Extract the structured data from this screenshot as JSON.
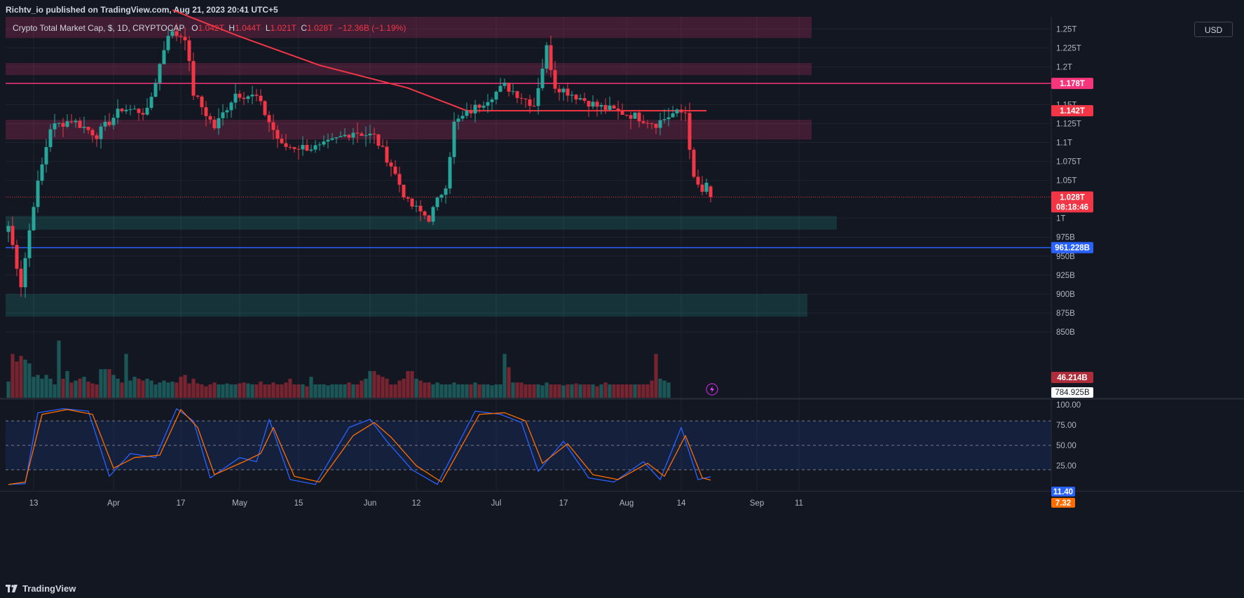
{
  "header": {
    "published": "Richtv_io published on TradingView.com, Aug 21, 2023 20:41 UTC+5"
  },
  "footer": {
    "brand": "TradingView"
  },
  "legend": {
    "symbol": "Crypto Total Market Cap, $, 1D, CRYPTOCAP",
    "o_label": "O",
    "o": "1.042T",
    "h_label": "H",
    "h": "1.044T",
    "l_label": "L",
    "l": "1.021T",
    "c_label": "C",
    "c": "1.028T",
    "change": "−12.36B (−1.19%)"
  },
  "currency": "USD",
  "chart_data": [
    {
      "type": "candlestick",
      "title": "Crypto Total Market Cap, $, 1D, CRYPTOCAP",
      "unit": "USD",
      "ylim": [
        763000000000,
        1266000000000
      ],
      "y_ticks": [
        {
          "value": 1250000000000,
          "label": "1.25T"
        },
        {
          "value": 1225000000000,
          "label": "1.225T"
        },
        {
          "value": 1200000000000,
          "label": "1.2T"
        },
        {
          "value": 1150000000000,
          "label": "1.15T"
        },
        {
          "value": 1125000000000,
          "label": "1.125T"
        },
        {
          "value": 1100000000000,
          "label": "1.1T"
        },
        {
          "value": 1075000000000,
          "label": "1.075T"
        },
        {
          "value": 1050000000000,
          "label": "1.05T"
        },
        {
          "value": 1000000000000,
          "label": "1T"
        },
        {
          "value": 975000000000,
          "label": "975B"
        },
        {
          "value": 950000000000,
          "label": "950B"
        },
        {
          "value": 925000000000,
          "label": "925B"
        },
        {
          "value": 900000000000,
          "label": "900B"
        },
        {
          "value": 875000000000,
          "label": "875B"
        },
        {
          "value": 850000000000,
          "label": "850B"
        }
      ],
      "x_ticks": [
        "13",
        "Apr",
        "17",
        "May",
        "15",
        "Jun",
        "12",
        "Jul",
        "17",
        "Aug",
        "14",
        "Sep",
        "11"
      ],
      "start_date": "2023-03-07",
      "anchors": [
        {
          "date": "2023-03-07",
          "close": 990000000000
        },
        {
          "date": "2023-03-10",
          "close": 912000000000
        },
        {
          "date": "2023-03-13",
          "close": 1020000000000
        },
        {
          "date": "2023-03-17",
          "close": 1120000000000
        },
        {
          "date": "2023-03-22",
          "close": 1130000000000
        },
        {
          "date": "2023-03-28",
          "close": 1110000000000
        },
        {
          "date": "2023-04-03",
          "close": 1145000000000
        },
        {
          "date": "2023-04-09",
          "close": 1140000000000
        },
        {
          "date": "2023-04-14",
          "close": 1245000000000
        },
        {
          "date": "2023-04-18",
          "close": 1240000000000
        },
        {
          "date": "2023-04-20",
          "close": 1165000000000
        },
        {
          "date": "2023-04-25",
          "close": 1120000000000
        },
        {
          "date": "2023-04-30",
          "close": 1165000000000
        },
        {
          "date": "2023-05-05",
          "close": 1160000000000
        },
        {
          "date": "2023-05-11",
          "close": 1095000000000
        },
        {
          "date": "2023-05-20",
          "close": 1093000000000
        },
        {
          "date": "2023-05-28",
          "close": 1115000000000
        },
        {
          "date": "2023-06-02",
          "close": 1108000000000
        },
        {
          "date": "2023-06-06",
          "close": 1070000000000
        },
        {
          "date": "2023-06-10",
          "close": 1020000000000
        },
        {
          "date": "2023-06-15",
          "close": 1000000000000
        },
        {
          "date": "2023-06-19",
          "close": 1045000000000
        },
        {
          "date": "2023-06-21",
          "close": 1125000000000
        },
        {
          "date": "2023-06-27",
          "close": 1150000000000
        },
        {
          "date": "2023-07-03",
          "close": 1175000000000
        },
        {
          "date": "2023-07-10",
          "close": 1150000000000
        },
        {
          "date": "2023-07-13",
          "close": 1225000000000
        },
        {
          "date": "2023-07-15",
          "close": 1175000000000
        },
        {
          "date": "2023-07-25",
          "close": 1148000000000
        },
        {
          "date": "2023-08-03",
          "close": 1135000000000
        },
        {
          "date": "2023-08-08",
          "close": 1125000000000
        },
        {
          "date": "2023-08-12",
          "close": 1138000000000
        },
        {
          "date": "2023-08-15",
          "close": 1140000000000
        },
        {
          "date": "2023-08-17",
          "close": 1050000000000
        },
        {
          "date": "2023-08-19",
          "close": 1035000000000
        },
        {
          "date": "2023-08-20",
          "close": 1042000000000
        },
        {
          "date": "2023-08-21",
          "close": 1028000000000
        }
      ],
      "last_candle": {
        "date": "2023-08-21",
        "open": 1042000000000,
        "high": 1044000000000,
        "low": 1021000000000,
        "close": 1028000000000
      },
      "moving_average": {
        "color": "#f23645",
        "points": [
          {
            "date": "2023-04-15",
            "value": 1275000000000
          },
          {
            "date": "2023-05-01",
            "value": 1240000000000
          },
          {
            "date": "2023-05-20",
            "value": 1202000000000
          },
          {
            "date": "2023-06-10",
            "value": 1172000000000
          },
          {
            "date": "2023-06-24",
            "value": 1142000000000
          },
          {
            "date": "2023-08-20",
            "value": 1142000000000
          }
        ]
      },
      "horizontal_lines": [
        {
          "value": 1178000000000,
          "label": "1.178T",
          "color": "#f7357a"
        },
        {
          "value": 961228000000,
          "label": "961.228B",
          "color": "#2962ff"
        }
      ],
      "zones": [
        {
          "from": 1238000000000,
          "to": 1266000000000,
          "color": "#f7357a",
          "start": "2023-03-07",
          "end": "2023-09-14"
        },
        {
          "from": 1189000000000,
          "to": 1205000000000,
          "color": "#f7357a",
          "start": "2023-03-07",
          "end": "2023-09-14"
        },
        {
          "from": 1104000000000,
          "to": 1130000000000,
          "color": "#f7357a",
          "start": "2023-03-07",
          "end": "2023-09-14"
        },
        {
          "from": 985000000000,
          "to": 1003000000000,
          "color": "#26a69a",
          "start": "2023-03-07",
          "end": "2023-09-20"
        },
        {
          "from": 870000000000,
          "to": 900000000000,
          "color": "#26a69a",
          "start": "2023-03-07",
          "end": "2023-09-13"
        }
      ],
      "price_labels": [
        {
          "text": "1.178T",
          "value": 1178000000000,
          "bg": "#f7357a"
        },
        {
          "text": "1.142T",
          "value": 1142000000000,
          "bg": "#f23645"
        },
        {
          "text": "1.028T",
          "value": 1028000000000,
          "bg": "#f23645",
          "sub": "08:18:46"
        },
        {
          "text": "961.228B",
          "value": 961228000000,
          "bg": "#2962ff"
        }
      ],
      "volume": {
        "last_label": "46.214B",
        "ma_label": "784.925B",
        "max_value": 100,
        "levels_pct": [
          17,
          46,
          38,
          44,
          40,
          36,
          22,
          24,
          20,
          24,
          20,
          14,
          60,
          20,
          28,
          16,
          18,
          20,
          22,
          17,
          15,
          14,
          30,
          30,
          30,
          24,
          20,
          16,
          46,
          18,
          22,
          20,
          18,
          20,
          18,
          14,
          16,
          18,
          16,
          17,
          16,
          22,
          24,
          15,
          20,
          15,
          14,
          12,
          14,
          16,
          14,
          14,
          15,
          14,
          14,
          15,
          16,
          15,
          14,
          14,
          17,
          14,
          14,
          16,
          14,
          14,
          16,
          20,
          14,
          14,
          14,
          12,
          22,
          14,
          14,
          14,
          13,
          14,
          14,
          14,
          14,
          16,
          14,
          14,
          18,
          20,
          28,
          28,
          24,
          22,
          20,
          14,
          14,
          18,
          20,
          28,
          28,
          20,
          18,
          16,
          16,
          14,
          16,
          14,
          14,
          14,
          16,
          14,
          14,
          14,
          14,
          16,
          14,
          14,
          14,
          13,
          14,
          14,
          46,
          32,
          16,
          16,
          16,
          14,
          14,
          14,
          14,
          13,
          16,
          14,
          14,
          14,
          13,
          14,
          14,
          15,
          14,
          14,
          14,
          14,
          12,
          14,
          16,
          14,
          14,
          14,
          14,
          14,
          14,
          14,
          14,
          14,
          14,
          18,
          46,
          20,
          18,
          16
        ]
      }
    },
    {
      "type": "line",
      "title": "Stochastic",
      "ylim": [
        -5,
        105
      ],
      "y_ticks": [
        100,
        75,
        50,
        25
      ],
      "y_tick_labels": [
        "100.00",
        "75.00",
        "50.00",
        "25.00"
      ],
      "band": [
        20,
        80
      ],
      "anchors_k": [
        {
          "date": "2023-03-07",
          "v": 2
        },
        {
          "date": "2023-03-11",
          "v": 3
        },
        {
          "date": "2023-03-14",
          "v": 90
        },
        {
          "date": "2023-03-20",
          "v": 95
        },
        {
          "date": "2023-03-26",
          "v": 92
        },
        {
          "date": "2023-03-31",
          "v": 12
        },
        {
          "date": "2023-04-05",
          "v": 40
        },
        {
          "date": "2023-04-11",
          "v": 35
        },
        {
          "date": "2023-04-16",
          "v": 95
        },
        {
          "date": "2023-04-20",
          "v": 80
        },
        {
          "date": "2023-04-24",
          "v": 10
        },
        {
          "date": "2023-05-01",
          "v": 35
        },
        {
          "date": "2023-05-05",
          "v": 30
        },
        {
          "date": "2023-05-08",
          "v": 82
        },
        {
          "date": "2023-05-13",
          "v": 8
        },
        {
          "date": "2023-05-19",
          "v": 2
        },
        {
          "date": "2023-05-27",
          "v": 72
        },
        {
          "date": "2023-06-01",
          "v": 82
        },
        {
          "date": "2023-06-05",
          "v": 55
        },
        {
          "date": "2023-06-11",
          "v": 20
        },
        {
          "date": "2023-06-17",
          "v": 2
        },
        {
          "date": "2023-06-26",
          "v": 92
        },
        {
          "date": "2023-07-02",
          "v": 88
        },
        {
          "date": "2023-07-07",
          "v": 78
        },
        {
          "date": "2023-07-11",
          "v": 18
        },
        {
          "date": "2023-07-17",
          "v": 55
        },
        {
          "date": "2023-07-23",
          "v": 10
        },
        {
          "date": "2023-07-29",
          "v": 5
        },
        {
          "date": "2023-08-05",
          "v": 30
        },
        {
          "date": "2023-08-09",
          "v": 8
        },
        {
          "date": "2023-08-14",
          "v": 72
        },
        {
          "date": "2023-08-18",
          "v": 8
        },
        {
          "date": "2023-08-21",
          "v": 11.4
        }
      ],
      "anchors_d": [
        {
          "date": "2023-03-07",
          "v": 2
        },
        {
          "date": "2023-03-11",
          "v": 5
        },
        {
          "date": "2023-03-15",
          "v": 88
        },
        {
          "date": "2023-03-21",
          "v": 94
        },
        {
          "date": "2023-03-27",
          "v": 88
        },
        {
          "date": "2023-04-01",
          "v": 22
        },
        {
          "date": "2023-04-06",
          "v": 35
        },
        {
          "date": "2023-04-12",
          "v": 38
        },
        {
          "date": "2023-04-17",
          "v": 94
        },
        {
          "date": "2023-04-21",
          "v": 72
        },
        {
          "date": "2023-04-25",
          "v": 14
        },
        {
          "date": "2023-05-02",
          "v": 30
        },
        {
          "date": "2023-05-06",
          "v": 40
        },
        {
          "date": "2023-05-09",
          "v": 72
        },
        {
          "date": "2023-05-14",
          "v": 12
        },
        {
          "date": "2023-05-20",
          "v": 5
        },
        {
          "date": "2023-05-28",
          "v": 62
        },
        {
          "date": "2023-06-02",
          "v": 78
        },
        {
          "date": "2023-06-06",
          "v": 60
        },
        {
          "date": "2023-06-12",
          "v": 25
        },
        {
          "date": "2023-06-18",
          "v": 5
        },
        {
          "date": "2023-06-27",
          "v": 88
        },
        {
          "date": "2023-07-03",
          "v": 90
        },
        {
          "date": "2023-07-08",
          "v": 80
        },
        {
          "date": "2023-07-12",
          "v": 28
        },
        {
          "date": "2023-07-18",
          "v": 52
        },
        {
          "date": "2023-07-24",
          "v": 14
        },
        {
          "date": "2023-07-30",
          "v": 8
        },
        {
          "date": "2023-08-06",
          "v": 28
        },
        {
          "date": "2023-08-10",
          "v": 12
        },
        {
          "date": "2023-08-15",
          "v": 62
        },
        {
          "date": "2023-08-19",
          "v": 10
        },
        {
          "date": "2023-08-21",
          "v": 7.32
        }
      ],
      "series": [
        {
          "name": "",
          "last_label": "11.40",
          "color": "#2962ff"
        },
        {
          "name": "",
          "last_label": "7.32",
          "color": "#ff6d00"
        }
      ]
    }
  ]
}
